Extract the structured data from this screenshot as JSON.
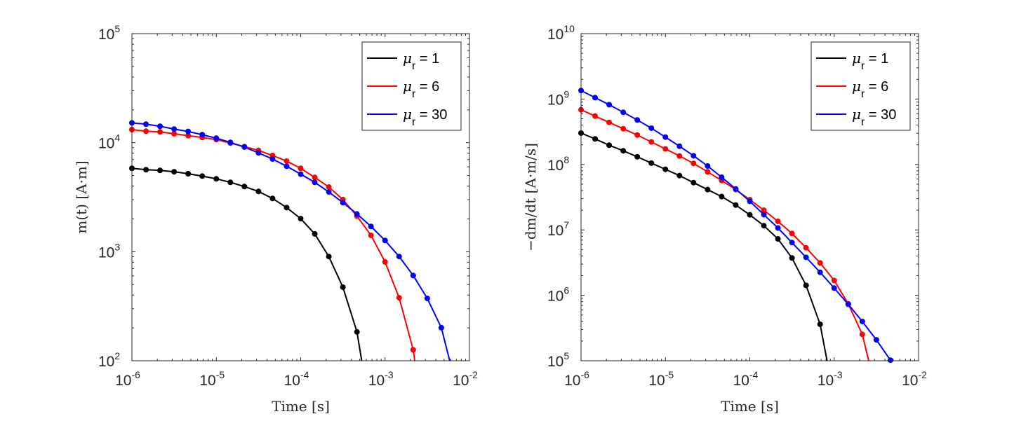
{
  "chart_data": [
    {
      "type": "line",
      "name": "magnetization",
      "xlabel": "Time [s]",
      "ylabel": "m(t) [A·m]",
      "xscale": "log",
      "yscale": "log",
      "xlim": [
        1e-06,
        0.01
      ],
      "ylim": [
        100.0,
        100000.0
      ],
      "x_ticks": [
        -6,
        -5,
        -4,
        -3,
        -2
      ],
      "y_ticks": [
        2,
        3,
        4,
        5
      ],
      "tick_base": "10",
      "legend_position": "top-right",
      "x_rule": "t = 1e-6 * 10^(k/6), k = 0,1,2,...",
      "series": [
        {
          "name": "μr = 1",
          "symbol": "μ",
          "sub": "r",
          "value": " = 1",
          "color": "#000000",
          "values": [
            5820,
            5650,
            5570,
            5410,
            5190,
            4940,
            4660,
            4330,
            3960,
            3570,
            3080,
            2540,
            2010,
            1456,
            903,
            473,
            184
          ]
        },
        {
          "name": "μr = 6",
          "symbol": "μ",
          "sub": "r",
          "value": " = 6",
          "color": "#ff0000",
          "values": [
            13180,
            12740,
            12560,
            12070,
            11600,
            11160,
            10670,
            9910,
            9200,
            8490,
            7630,
            6780,
            5820,
            4800,
            3920,
            3010,
            2120,
            1413,
            805,
            378,
            126
          ]
        },
        {
          "name": "μr = 30",
          "symbol": "μ",
          "sub": "r",
          "value": " = 30",
          "color": "#0000ff",
          "values": [
            15200,
            14780,
            14140,
            13320,
            12670,
            11840,
            10990,
            10060,
            9120,
            8060,
            7080,
            6080,
            5140,
            4330,
            3530,
            2820,
            2220,
            1705,
            1268,
            903,
            605,
            373,
            201
          ]
        }
      ]
    },
    {
      "type": "line",
      "name": "magnetization-derivative",
      "xlabel": "Time [s]",
      "ylabel": "−dm/dt [A·m/s]",
      "xscale": "log",
      "yscale": "log",
      "xlim": [
        1e-06,
        0.01
      ],
      "ylim": [
        100000.0,
        10000000000.0
      ],
      "x_ticks": [
        -6,
        -5,
        -4,
        -3,
        -2
      ],
      "y_ticks": [
        5,
        6,
        7,
        8,
        9,
        10
      ],
      "tick_base": "10",
      "legend_position": "top-right",
      "x_rule": "t = 1e-6 * 10^(k/6), k = 0,1,2,...",
      "series": [
        {
          "name": "μr = 1",
          "symbol": "μ",
          "sub": "r",
          "value": " = 1",
          "color": "#000000",
          "values": [
            302000000.0,
            246000000.0,
            197000000.0,
            162000000.0,
            131000000.0,
            105000000.0,
            84300000.0,
            67600000.0,
            52800000.0,
            41300000.0,
            32300000.0,
            24000000.0,
            17000000.0,
            11600000.0,
            7290000.0,
            3720000.0,
            1420000.0,
            361000.0
          ]
        },
        {
          "name": "μr = 6",
          "symbol": "μ",
          "sub": "r",
          "value": " = 6",
          "color": "#ff0000",
          "values": [
            686000000.0,
            550000000.0,
            440000000.0,
            352000000.0,
            282000000.0,
            221000000.0,
            173000000.0,
            135000000.0,
            104000000.0,
            77200000.0,
            56900000.0,
            41300000.0,
            29000000.0,
            20000000.0,
            13500000.0,
            8820000.0,
            5330000.0,
            3130000.0,
            1690000.0,
            741000.0,
            253000.0
          ]
        },
        {
          "name": "μr = 30",
          "symbol": "μ",
          "sub": "r",
          "value": " = 30",
          "color": "#0000ff",
          "values": [
            1350000000.0,
            1050000000.0,
            820000000.0,
            628000000.0,
            479000000.0,
            359000000.0,
            262000000.0,
            190000000.0,
            136000000.0,
            94700000.0,
            63800000.0,
            42300000.0,
            27400000.0,
            17100000.0,
            10700000.0,
            6400000.0,
            3810000.0,
            2250000.0,
            1290000.0,
            730000.0,
            398000.0,
            209000.0,
            102000.0
          ]
        }
      ]
    }
  ]
}
